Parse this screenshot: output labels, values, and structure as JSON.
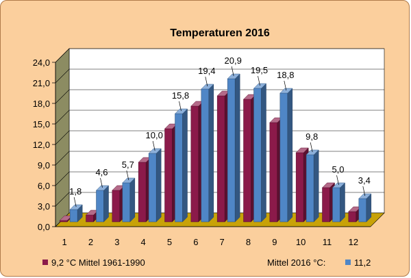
{
  "chart_data": {
    "type": "bar",
    "title": "Temperaturen 2016",
    "categories": [
      "1",
      "2",
      "3",
      "4",
      "5",
      "6",
      "7",
      "8",
      "9",
      "10",
      "11",
      "12"
    ],
    "series": [
      {
        "name": "9,2 °C Mittel 1961-1990",
        "color": "#8b1a4a",
        "values": [
          -0.4,
          1.0,
          4.6,
          8.7,
          13.6,
          16.9,
          18.4,
          17.9,
          14.5,
          10.1,
          5.0,
          1.5
        ]
      },
      {
        "name": "11,2",
        "color": "#4f86c6",
        "values": [
          1.8,
          4.6,
          5.7,
          10.0,
          15.8,
          19.4,
          20.9,
          19.5,
          18.8,
          9.8,
          5.0,
          3.4
        ],
        "labels": [
          "1,8",
          "4,6",
          "5,7",
          "10,0",
          "15,8",
          "19,4",
          "20,9",
          "19,5",
          "18,8",
          "9,8",
          "5,0",
          "3,4"
        ]
      }
    ],
    "yticks": [
      "0,0",
      "3,0",
      "6,0",
      "9,0",
      "12,0",
      "15,0",
      "18,0",
      "21,0",
      "24,0"
    ],
    "ylim": [
      0,
      24
    ],
    "grid": true,
    "legend": {
      "position": "bottom",
      "text": "Mittel 2016 °C:"
    }
  }
}
